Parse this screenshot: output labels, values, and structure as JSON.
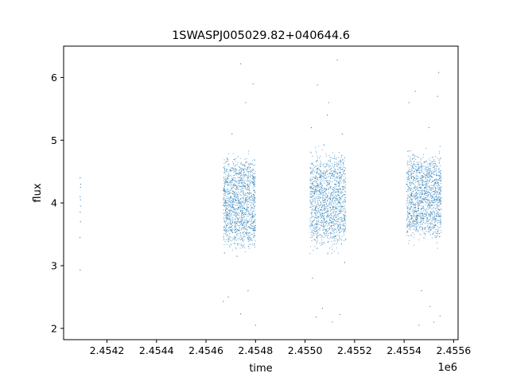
{
  "chart_data": {
    "type": "scatter",
    "title": "1SWASPJ005029.82+040644.6",
    "xlabel": "time",
    "ylabel": "flux",
    "x_offset_label": "1e6",
    "xlim": [
      2454025,
      2455618
    ],
    "ylim": [
      1.82,
      6.5
    ],
    "x_ticks": [
      2454200,
      2454400,
      2454600,
      2454800,
      2455000,
      2455200,
      2455400,
      2455600
    ],
    "x_tick_labels": [
      "2.4542",
      "2.4544",
      "2.4546",
      "2.4548",
      "2.4550",
      "2.4552",
      "2.4554",
      "2.4556"
    ],
    "y_ticks": [
      2,
      3,
      4,
      5,
      6
    ],
    "y_tick_labels": [
      "2",
      "3",
      "4",
      "5",
      "6"
    ],
    "grid": false,
    "legend": "none",
    "marker_color": "#1f77b4",
    "series": [
      {
        "points": [
          [
            2454092,
            4.4
          ],
          [
            2454093,
            4.25
          ],
          [
            2454092,
            4.1
          ],
          [
            2454093,
            3.95
          ],
          [
            2454092,
            3.85
          ],
          [
            2454093,
            3.7
          ],
          [
            2454091,
            3.45
          ],
          [
            2454092,
            2.93
          ],
          [
            2454094,
            4.3
          ],
          [
            2454093,
            4.05
          ],
          [
            2454670,
            4.2
          ],
          [
            2454685,
            3.9
          ],
          [
            2454700,
            4.35
          ],
          [
            2454715,
            4.1
          ],
          [
            2454728,
            3.7
          ],
          [
            2454742,
            4.5
          ],
          [
            2454755,
            4.0
          ],
          [
            2454768,
            4.3
          ],
          [
            2454782,
            3.6
          ],
          [
            2454795,
            4.2
          ],
          [
            2454760,
            5.6
          ],
          [
            2454790,
            5.9
          ],
          [
            2454740,
            6.22
          ],
          [
            2454705,
            5.1
          ],
          [
            2454770,
            2.6
          ],
          [
            2454690,
            2.5
          ],
          [
            2454740,
            2.23
          ],
          [
            2454800,
            2.05
          ],
          [
            2454670,
            2.43
          ],
          [
            2454725,
            3.15
          ],
          [
            2455020,
            4.25
          ],
          [
            2455040,
            3.9
          ],
          [
            2455060,
            4.4
          ],
          [
            2455080,
            4.05
          ],
          [
            2455100,
            3.6
          ],
          [
            2455120,
            4.3
          ],
          [
            2455140,
            4.0
          ],
          [
            2455160,
            3.75
          ],
          [
            2455050,
            5.88
          ],
          [
            2455130,
            6.28
          ],
          [
            2455090,
            5.4
          ],
          [
            2455150,
            5.1
          ],
          [
            2455070,
            2.32
          ],
          [
            2455110,
            2.1
          ],
          [
            2455045,
            2.18
          ],
          [
            2455140,
            2.22
          ],
          [
            2455030,
            2.8
          ],
          [
            2455160,
            3.05
          ],
          [
            2455095,
            5.6
          ],
          [
            2455025,
            5.2
          ],
          [
            2455410,
            4.3
          ],
          [
            2455425,
            3.9
          ],
          [
            2455440,
            4.5
          ],
          [
            2455455,
            4.1
          ],
          [
            2455470,
            3.7
          ],
          [
            2455485,
            4.25
          ],
          [
            2455500,
            4.0
          ],
          [
            2455515,
            4.35
          ],
          [
            2455530,
            3.8
          ],
          [
            2455545,
            4.15
          ],
          [
            2455445,
            5.78
          ],
          [
            2455540,
            6.08
          ],
          [
            2455420,
            5.6
          ],
          [
            2455500,
            5.2
          ],
          [
            2455535,
            5.7
          ],
          [
            2455460,
            2.05
          ],
          [
            2455520,
            2.1
          ],
          [
            2455545,
            2.2
          ],
          [
            2455470,
            2.6
          ],
          [
            2455505,
            2.35
          ]
        ],
        "dense_segments": [
          {
            "x_range": [
              2454670,
              2454800
            ],
            "y_center": 4.0,
            "y_spread": 0.6
          },
          {
            "x_range": [
              2455020,
              2455165
            ],
            "y_center": 4.05,
            "y_spread": 0.65
          },
          {
            "x_range": [
              2455410,
              2455550
            ],
            "y_center": 4.1,
            "y_spread": 0.55
          }
        ]
      }
    ]
  }
}
